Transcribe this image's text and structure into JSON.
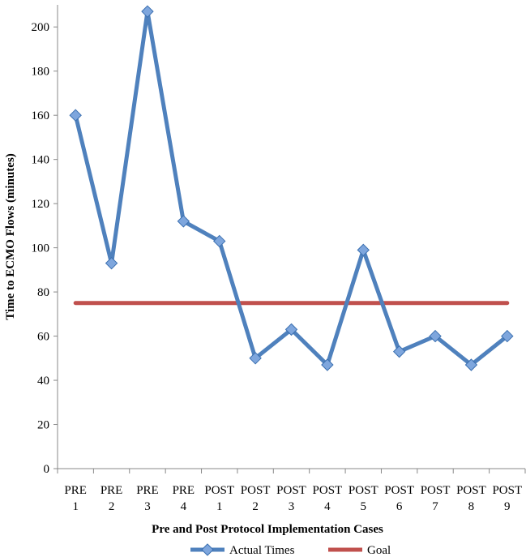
{
  "chart_data": {
    "type": "line",
    "categories": [
      [
        "PRE",
        "1"
      ],
      [
        "PRE",
        "2"
      ],
      [
        "PRE",
        "3"
      ],
      [
        "PRE",
        "4"
      ],
      [
        "POST",
        "1"
      ],
      [
        "POST",
        "2"
      ],
      [
        "POST",
        "3"
      ],
      [
        "POST",
        "4"
      ],
      [
        "POST",
        "5"
      ],
      [
        "POST",
        "6"
      ],
      [
        "POST",
        "7"
      ],
      [
        "POST",
        "8"
      ],
      [
        "POST",
        "9"
      ]
    ],
    "series": [
      {
        "name": "Actual Times",
        "values": [
          160,
          93,
          207,
          112,
          103,
          50,
          63,
          47,
          99,
          53,
          60,
          47,
          60
        ],
        "color": "#4F81BD",
        "marker": "diamond"
      },
      {
        "name": "Goal",
        "values": [
          75,
          75,
          75,
          75,
          75,
          75,
          75,
          75,
          75,
          75,
          75,
          75,
          75
        ],
        "color": "#C0504D",
        "marker": "none"
      }
    ],
    "xlabel": "Pre and Post Protocol Implementation Cases",
    "ylabel": "Time to ECMO Flows (minutes)",
    "ylim": [
      0,
      210
    ],
    "yticks": [
      0,
      20,
      40,
      60,
      80,
      100,
      120,
      140,
      160,
      180,
      200
    ],
    "grid": false,
    "legend_position": "bottom"
  }
}
